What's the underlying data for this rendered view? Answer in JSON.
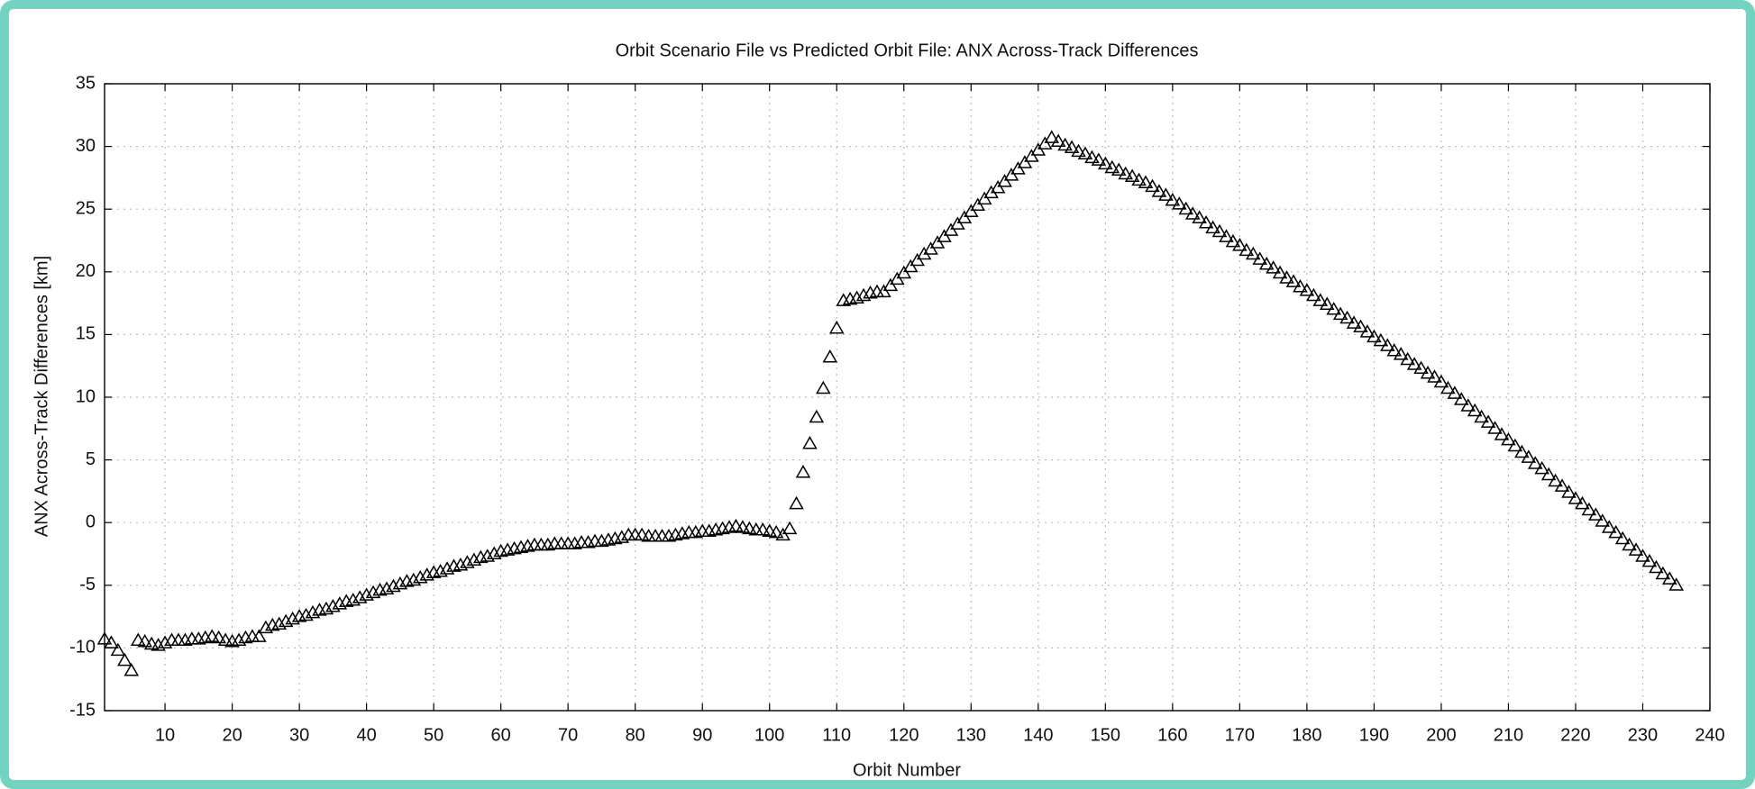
{
  "chart_data": {
    "type": "scatter",
    "title": "Orbit Scenario File vs Predicted Orbit File: ANX Across-Track Differences",
    "x_label": "Orbit Number",
    "y_label": "ANX Across-Track Differences [km]",
    "marker": "triangle",
    "color": "#000000",
    "grid": true,
    "xlim": [
      1,
      240
    ],
    "ylim": [
      -15,
      35
    ],
    "xticks": [
      10,
      20,
      30,
      40,
      50,
      60,
      70,
      80,
      90,
      100,
      110,
      120,
      130,
      140,
      150,
      160,
      170,
      180,
      190,
      200,
      210,
      220,
      230,
      240
    ],
    "yticks": [
      -15,
      -10,
      -5,
      0,
      5,
      10,
      15,
      20,
      25,
      30,
      35
    ],
    "x": [
      1,
      2,
      3,
      4,
      5,
      6,
      7,
      8,
      9,
      10,
      11,
      12,
      13,
      14,
      15,
      16,
      17,
      18,
      19,
      20,
      21,
      22,
      23,
      24,
      25,
      26,
      27,
      28,
      29,
      30,
      31,
      32,
      33,
      34,
      35,
      36,
      37,
      38,
      39,
      40,
      41,
      42,
      43,
      44,
      45,
      46,
      47,
      48,
      49,
      50,
      51,
      52,
      53,
      54,
      55,
      56,
      57,
      58,
      59,
      60,
      61,
      62,
      63,
      64,
      65,
      66,
      67,
      68,
      69,
      70,
      71,
      72,
      73,
      74,
      75,
      76,
      77,
      78,
      79,
      80,
      81,
      82,
      83,
      84,
      85,
      86,
      87,
      88,
      89,
      90,
      91,
      92,
      93,
      94,
      95,
      96,
      97,
      98,
      99,
      100,
      101,
      102,
      103,
      104,
      105,
      106,
      107,
      108,
      109,
      110,
      111,
      112,
      113,
      114,
      115,
      116,
      117,
      118,
      119,
      120,
      121,
      122,
      123,
      124,
      125,
      126,
      127,
      128,
      129,
      130,
      131,
      132,
      133,
      134,
      135,
      136,
      137,
      138,
      139,
      140,
      141,
      142,
      143,
      144,
      145,
      146,
      147,
      148,
      149,
      150,
      151,
      152,
      153,
      154,
      155,
      156,
      157,
      158,
      159,
      160,
      161,
      162,
      163,
      164,
      165,
      166,
      167,
      168,
      169,
      170,
      171,
      172,
      173,
      174,
      175,
      176,
      177,
      178,
      179,
      180,
      181,
      182,
      183,
      184,
      185,
      186,
      187,
      188,
      189,
      190,
      191,
      192,
      193,
      194,
      195,
      196,
      197,
      198,
      199,
      200,
      201,
      202,
      203,
      204,
      205,
      206,
      207,
      208,
      209,
      210,
      211,
      212,
      213,
      214,
      215,
      216,
      217,
      218,
      219,
      220,
      221,
      222,
      223,
      224,
      225,
      226,
      227,
      228,
      229,
      230,
      231,
      232,
      233,
      234,
      235
    ],
    "values": [
      -9.3,
      -9.6,
      -10.2,
      -11,
      -11.8,
      -9.4,
      -9.5,
      -9.7,
      -9.8,
      -9.6,
      -9.4,
      -9.4,
      -9.4,
      -9.3,
      -9.3,
      -9.2,
      -9.1,
      -9.2,
      -9.4,
      -9.5,
      -9.4,
      -9.2,
      -9.1,
      -9.1,
      -8.4,
      -8.2,
      -8.1,
      -7.9,
      -7.7,
      -7.5,
      -7.4,
      -7.2,
      -7.0,
      -6.9,
      -6.7,
      -6.5,
      -6.3,
      -6.2,
      -6.0,
      -5.8,
      -5.6,
      -5.4,
      -5.3,
      -5.1,
      -4.9,
      -4.7,
      -4.6,
      -4.4,
      -4.2,
      -4.0,
      -3.9,
      -3.7,
      -3.5,
      -3.4,
      -3.2,
      -3.0,
      -2.8,
      -2.7,
      -2.5,
      -2.3,
      -2.2,
      -2.1,
      -2.0,
      -1.9,
      -1.8,
      -1.8,
      -1.8,
      -1.7,
      -1.7,
      -1.7,
      -1.7,
      -1.6,
      -1.6,
      -1.5,
      -1.5,
      -1.4,
      -1.3,
      -1.2,
      -1.0,
      -1.0,
      -1.0,
      -1.1,
      -1.1,
      -1.1,
      -1.1,
      -1.0,
      -0.9,
      -0.8,
      -0.8,
      -0.7,
      -0.7,
      -0.6,
      -0.5,
      -0.4,
      -0.3,
      -0.4,
      -0.5,
      -0.6,
      -0.6,
      -0.7,
      -0.8,
      -1.0,
      -0.5,
      1.5,
      4.0,
      6.3,
      8.4,
      10.7,
      13.2,
      15.5,
      17.7,
      17.8,
      17.9,
      18.1,
      18.3,
      18.4,
      18.4,
      18.9,
      19.4,
      19.9,
      20.4,
      20.9,
      21.4,
      21.8,
      22.3,
      22.8,
      23.3,
      23.8,
      24.3,
      24.8,
      25.3,
      25.8,
      26.3,
      26.7,
      27.2,
      27.7,
      28.2,
      28.7,
      29.2,
      29.7,
      30.2,
      30.7,
      30.4,
      30.1,
      29.9,
      29.6,
      29.4,
      29.1,
      28.9,
      28.6,
      28.3,
      28.1,
      27.8,
      27.6,
      27.3,
      27.1,
      26.8,
      26.4,
      26.1,
      25.7,
      25.4,
      25.0,
      24.6,
      24.3,
      23.9,
      23.5,
      23.2,
      22.8,
      22.4,
      22.1,
      21.7,
      21.4,
      21.0,
      20.6,
      20.3,
      19.9,
      19.5,
      19.2,
      18.8,
      18.5,
      18.1,
      17.7,
      17.4,
      17.0,
      16.6,
      16.3,
      15.9,
      15.6,
      15.2,
      14.8,
      14.5,
      14.1,
      13.7,
      13.4,
      13.0,
      12.6,
      12.3,
      11.9,
      11.6,
      11.2,
      10.7,
      10.3,
      9.8,
      9.3,
      8.9,
      8.4,
      8.0,
      7.5,
      7.0,
      6.6,
      6.1,
      5.6,
      5.2,
      4.7,
      4.3,
      3.8,
      3.3,
      2.9,
      2.4,
      1.9,
      1.5,
      1.0,
      0.6,
      0.1,
      -0.4,
      -0.8,
      -1.3,
      -1.8,
      -2.2,
      -2.7,
      -3.1,
      -3.6,
      -4.1,
      -4.5,
      -5.0
    ]
  }
}
